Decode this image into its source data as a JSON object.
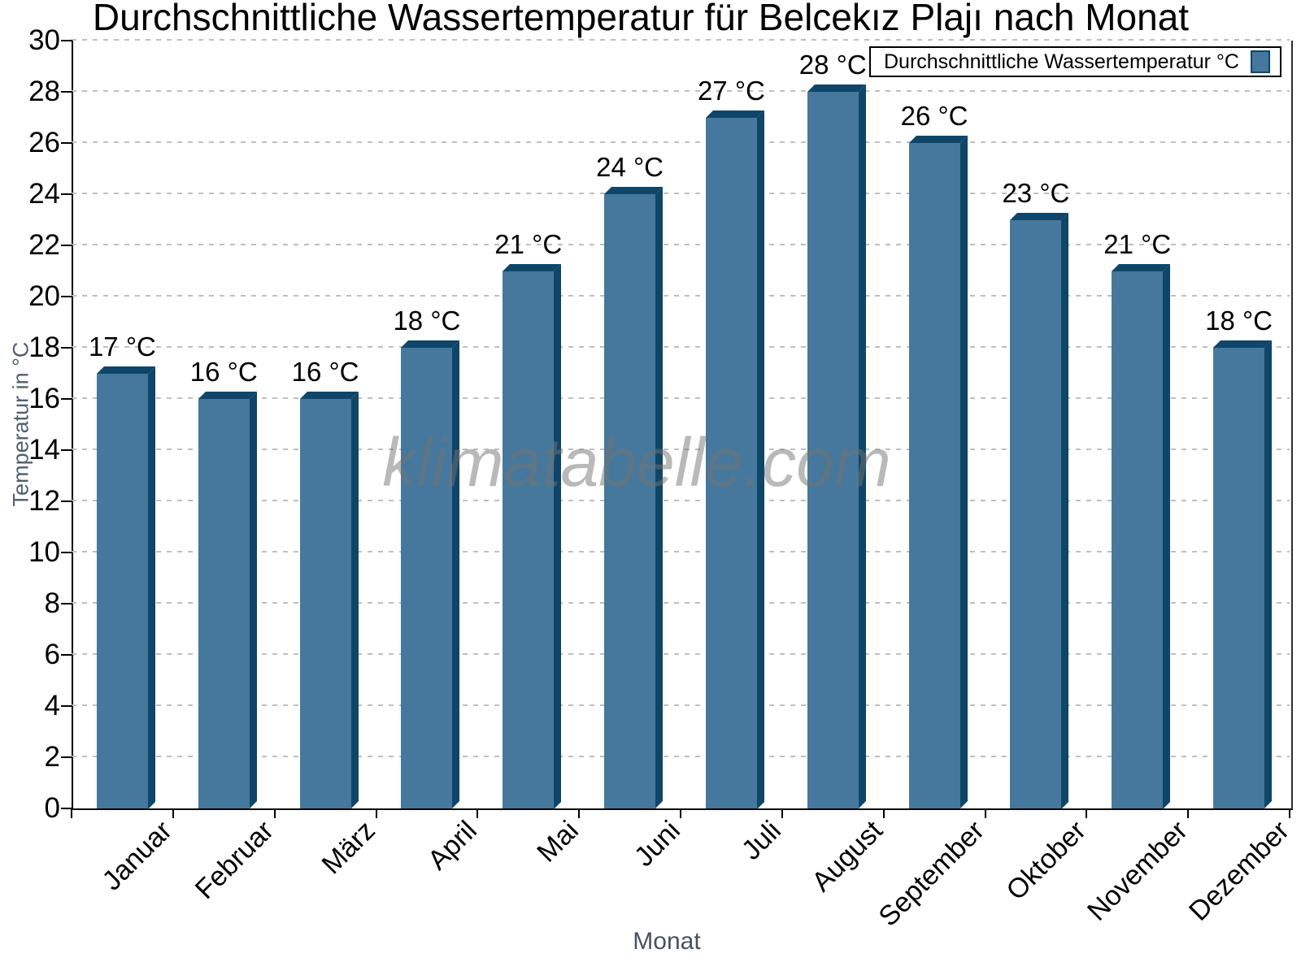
{
  "title": "Durchschnittliche Wassertemperatur für Belcekız Plajı nach Monat",
  "legend": {
    "label": "Durchschnittliche Wassertemperatur °C"
  },
  "watermark": "klimatabelle.com",
  "axes": {
    "x_title": "Monat",
    "y_title": "Temperatur in °C"
  },
  "chart_data": {
    "type": "bar",
    "title": "Durchschnittliche Wassertemperatur für Belcekız Plajı nach Monat",
    "categories": [
      "Januar",
      "Februar",
      "März",
      "April",
      "Mai",
      "Juni",
      "Juli",
      "August",
      "September",
      "Oktober",
      "November",
      "Dezember"
    ],
    "values": [
      17,
      16,
      16,
      18,
      21,
      24,
      27,
      28,
      26,
      23,
      21,
      18
    ],
    "value_label_suffix": " °C",
    "xlabel": "Monat",
    "ylabel": "Temperatur in °C",
    "ylim": [
      0,
      30
    ],
    "ytick_step": 2,
    "grid": "horizontal-dashed",
    "legend_position": "top-right",
    "legend_label": "Durchschnittliche Wassertemperatur °C",
    "colors": {
      "bar_face": "#45789C",
      "bar_depth": "#0F4569",
      "gridline": "#BFBFBF",
      "axis": "#000000",
      "axis_title": "#51606E",
      "watermark": "#737373"
    }
  }
}
